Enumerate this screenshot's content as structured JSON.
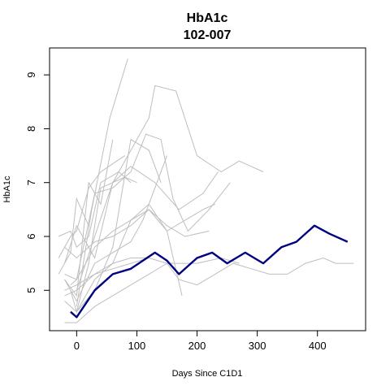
{
  "chart_data": {
    "type": "line",
    "title": "HbA1c",
    "subtitle": "102-007",
    "xlabel": "Days Since C1D1",
    "ylabel": "HbA1c",
    "xlim": [
      -45,
      480
    ],
    "ylim": [
      4.25,
      9.5
    ],
    "x_ticks": [
      0,
      100,
      200,
      300,
      400
    ],
    "y_ticks": [
      5,
      6,
      7,
      8,
      9
    ],
    "grid": false,
    "legend": "none",
    "highlight_color": "#000080",
    "background_color": "#bebebe",
    "highlight_series": {
      "x": [
        -10,
        0,
        30,
        60,
        90,
        130,
        150,
        170,
        200,
        225,
        250,
        280,
        310,
        340,
        365,
        395,
        420,
        450
      ],
      "y": [
        4.6,
        4.5,
        5.0,
        5.3,
        5.4,
        5.7,
        5.55,
        5.3,
        5.6,
        5.7,
        5.5,
        5.7,
        5.5,
        5.8,
        5.9,
        6.2,
        6.05,
        5.9
      ]
    },
    "background_series": [
      {
        "x": [
          0,
          25,
          55,
          85
        ],
        "y": [
          4.7,
          6.5,
          8.2,
          9.3
        ]
      },
      {
        "x": [
          0,
          30,
          60,
          120,
          130,
          165,
          200,
          240,
          270,
          310
        ],
        "y": [
          5.0,
          6.0,
          7.0,
          8.2,
          8.8,
          8.7,
          7.5,
          7.2,
          7.4,
          7.2
        ]
      },
      {
        "x": [
          -20,
          0,
          30,
          60,
          90,
          130,
          170,
          210,
          235
        ],
        "y": [
          5.5,
          6.2,
          5.6,
          7.0,
          7.3,
          7.0,
          6.5,
          6.8,
          7.2
        ]
      },
      {
        "x": [
          0,
          30,
          60,
          90,
          120,
          140
        ],
        "y": [
          4.6,
          5.0,
          5.8,
          7.8,
          7.6,
          7.0
        ]
      },
      {
        "x": [
          -10,
          0,
          30,
          60,
          90,
          115,
          140,
          160,
          185,
          220,
          255
        ],
        "y": [
          5.1,
          5.2,
          6.8,
          6.9,
          7.2,
          7.9,
          7.8,
          6.7,
          6.1,
          6.5,
          7.0
        ]
      },
      {
        "x": [
          -30,
          -10,
          0,
          20
        ],
        "y": [
          5.3,
          5.7,
          6.7,
          6.2
        ]
      },
      {
        "x": [
          -20,
          0,
          30,
          60,
          90,
          110,
          130,
          150
        ],
        "y": [
          5.2,
          4.8,
          5.5,
          5.7,
          5.9,
          6.3,
          6.9,
          7.5
        ]
      },
      {
        "x": [
          -20,
          0,
          30,
          60,
          90,
          120,
          150,
          175
        ],
        "y": [
          4.8,
          4.6,
          5.2,
          5.5,
          6.3,
          6.6,
          6.1,
          4.9
        ]
      },
      {
        "x": [
          -30,
          -10,
          0,
          20,
          40,
          80
        ],
        "y": [
          5.6,
          6.0,
          6.1,
          6.9,
          7.2,
          7.5
        ]
      },
      {
        "x": [
          -20,
          0,
          30,
          60,
          90,
          120,
          150,
          180,
          220
        ],
        "y": [
          5.3,
          5.2,
          5.8,
          6.1,
          6.3,
          6.5,
          6.2,
          6.0,
          6.1
        ]
      },
      {
        "x": [
          -20,
          0,
          30,
          60,
          90,
          120,
          150,
          180,
          210,
          230
        ],
        "y": [
          5.8,
          5.6,
          5.9,
          6.0,
          6.2,
          6.5,
          6.1,
          6.3,
          6.5,
          6.6
        ]
      },
      {
        "x": [
          -20,
          0,
          30,
          60,
          90,
          120
        ],
        "y": [
          5.0,
          5.1,
          5.3,
          5.4,
          5.5,
          5.6
        ]
      },
      {
        "x": [
          -20,
          0,
          30,
          60,
          90,
          120,
          150,
          200,
          240,
          270
        ],
        "y": [
          4.9,
          5.0,
          5.3,
          5.5,
          5.6,
          5.6,
          5.5,
          5.5,
          5.6,
          5.5
        ]
      },
      {
        "x": [
          -20,
          0,
          30,
          60,
          90,
          120,
          150,
          170,
          200,
          230,
          260,
          290,
          320,
          350,
          380,
          410,
          430,
          460
        ],
        "y": [
          4.4,
          4.4,
          4.7,
          4.9,
          5.1,
          5.3,
          5.5,
          5.2,
          5.1,
          5.3,
          5.5,
          5.4,
          5.3,
          5.3,
          5.5,
          5.6,
          5.5,
          5.5
        ]
      },
      {
        "x": [
          -30,
          -10,
          0,
          20,
          40,
          70,
          90
        ],
        "y": [
          6.0,
          6.1,
          5.8,
          6.0,
          7.0,
          7.2,
          7.0
        ]
      },
      {
        "x": [
          -20,
          0,
          20,
          40,
          60
        ],
        "y": [
          5.2,
          4.9,
          7.0,
          6.6,
          7.8
        ]
      },
      {
        "x": [
          -10,
          0,
          20,
          40,
          60,
          80,
          100
        ],
        "y": [
          5.0,
          4.6,
          5.5,
          6.9,
          7.0,
          7.1,
          7.0
        ]
      }
    ]
  }
}
